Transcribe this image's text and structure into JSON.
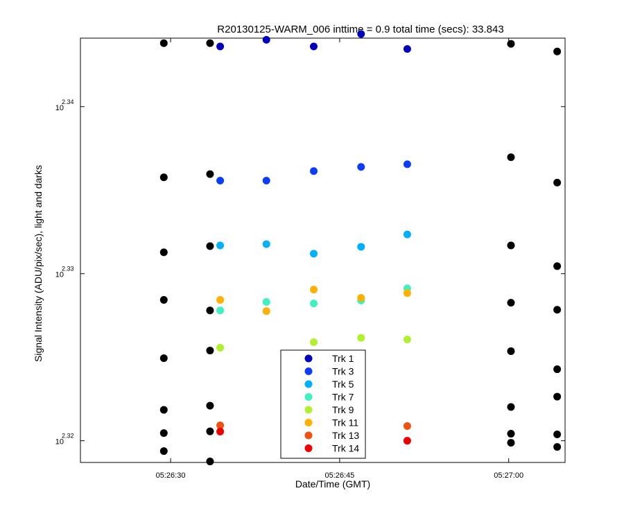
{
  "chart_data": {
    "type": "scatter",
    "title": "R20130125-WARM_006 inttime = 0.9 total time (secs): 33.843",
    "xlabel": "Date/Time (GMT)",
    "ylabel": "Signal Intensity (ADU/pix/sec), light and darks",
    "y_scale": "log",
    "xlim": [
      "05:26:22",
      "05:27:05"
    ],
    "ylim_log10": [
      2.3187,
      2.3441
    ],
    "x_ticks": [
      {
        "time": "05:26:30",
        "label": "05:26:30"
      },
      {
        "time": "05:26:45",
        "label": "05:26:45"
      },
      {
        "time": "05:27:00",
        "label": "05:27:00"
      }
    ],
    "y_ticks": [
      {
        "log10": 2.32,
        "base": "10",
        "exponent": "2.32"
      },
      {
        "log10": 2.33,
        "base": "10",
        "exponent": "2.33"
      },
      {
        "log10": 2.34,
        "base": "10",
        "exponent": "2.34"
      }
    ],
    "legend": {
      "position": "bottom-center"
    },
    "series": [
      {
        "name": "Trk 1",
        "color": "#0000bb",
        "points": [
          {
            "t": "05:26:34.4",
            "log10y": 2.3436
          },
          {
            "t": "05:26:38.5",
            "log10y": 2.344
          },
          {
            "t": "05:26:42.7",
            "log10y": 2.3436
          },
          {
            "t": "05:26:46.9",
            "log10y": 2.34435
          },
          {
            "t": "05:26:51.0",
            "log10y": 2.34345
          }
        ]
      },
      {
        "name": "Trk 3",
        "color": "#0a3df5",
        "points": [
          {
            "t": "05:26:34.4",
            "log10y": 2.33557
          },
          {
            "t": "05:26:38.5",
            "log10y": 2.33557
          },
          {
            "t": "05:26:42.7",
            "log10y": 2.33614
          },
          {
            "t": "05:26:46.9",
            "log10y": 2.33639
          },
          {
            "t": "05:26:51.0",
            "log10y": 2.33655
          }
        ]
      },
      {
        "name": "Trk 5",
        "color": "#00b0ff",
        "points": [
          {
            "t": "05:26:34.4",
            "log10y": 2.33169
          },
          {
            "t": "05:26:38.5",
            "log10y": 2.33177
          },
          {
            "t": "05:26:42.7",
            "log10y": 2.3312
          },
          {
            "t": "05:26:46.9",
            "log10y": 2.33161
          },
          {
            "t": "05:26:51.0",
            "log10y": 2.33235
          }
        ]
      },
      {
        "name": "Trk 7",
        "color": "#40f0c0",
        "points": [
          {
            "t": "05:26:34.4",
            "log10y": 2.3278
          },
          {
            "t": "05:26:38.5",
            "log10y": 2.32831
          },
          {
            "t": "05:26:42.7",
            "log10y": 2.32822
          },
          {
            "t": "05:26:46.9",
            "log10y": 2.32839
          },
          {
            "t": "05:26:51.0",
            "log10y": 2.32912
          }
        ]
      },
      {
        "name": "Trk 9",
        "color": "#b0f030",
        "points": [
          {
            "t": "05:26:34.4",
            "log10y": 2.32557
          },
          {
            "t": "05:26:42.7",
            "log10y": 2.3259
          },
          {
            "t": "05:26:46.9",
            "log10y": 2.32616
          },
          {
            "t": "05:26:51.0",
            "log10y": 2.32606
          }
        ]
      },
      {
        "name": "Trk 11",
        "color": "#ffb000",
        "points": [
          {
            "t": "05:26:34.4",
            "log10y": 2.32843
          },
          {
            "t": "05:26:38.5",
            "log10y": 2.32776
          },
          {
            "t": "05:26:42.7",
            "log10y": 2.32905
          },
          {
            "t": "05:26:46.9",
            "log10y": 2.32855
          },
          {
            "t": "05:26:51.0",
            "log10y": 2.32884
          }
        ]
      },
      {
        "name": "Trk 13",
        "color": "#f05010",
        "points": [
          {
            "t": "05:26:34.4",
            "log10y": 2.32092
          },
          {
            "t": "05:26:46.9",
            "log10y": 2.32096
          },
          {
            "t": "05:26:51.0",
            "log10y": 2.32088
          }
        ]
      },
      {
        "name": "Trk 14",
        "color": "#ee0000",
        "points": [
          {
            "t": "05:26:34.4",
            "log10y": 2.32055
          },
          {
            "t": "05:26:46.9",
            "log10y": 2.32004
          },
          {
            "t": "05:26:51.0",
            "log10y": 2.32
          }
        ]
      },
      {
        "color": "#000000",
        "points": [
          {
            "t": "05:26:29.4",
            "log10y": 2.3438
          },
          {
            "t": "05:26:29.4",
            "log10y": 2.33577
          },
          {
            "t": "05:26:29.4",
            "log10y": 2.33128
          },
          {
            "t": "05:26:29.4",
            "log10y": 2.32843
          },
          {
            "t": "05:26:29.4",
            "log10y": 2.32494
          },
          {
            "t": "05:26:29.4",
            "log10y": 2.32185
          },
          {
            "t": "05:26:29.4",
            "log10y": 2.32046
          },
          {
            "t": "05:26:29.4",
            "log10y": 2.31938
          },
          {
            "t": "05:26:33.5",
            "log10y": 2.3438
          },
          {
            "t": "05:26:33.5",
            "log10y": 2.33596
          },
          {
            "t": "05:26:33.5",
            "log10y": 2.33165
          },
          {
            "t": "05:26:33.5",
            "log10y": 2.3278
          },
          {
            "t": "05:26:33.5",
            "log10y": 2.3254
          },
          {
            "t": "05:26:33.5",
            "log10y": 2.3221
          },
          {
            "t": "05:26:33.5",
            "log10y": 2.32056
          },
          {
            "t": "05:26:33.5",
            "log10y": 2.31876
          },
          {
            "t": "05:27:00.2",
            "log10y": 2.34376
          },
          {
            "t": "05:27:00.2",
            "log10y": 2.33697
          },
          {
            "t": "05:27:00.2",
            "log10y": 2.33169
          },
          {
            "t": "05:27:00.2",
            "log10y": 2.32826
          },
          {
            "t": "05:27:00.2",
            "log10y": 2.32536
          },
          {
            "t": "05:27:00.2",
            "log10y": 2.32202
          },
          {
            "t": "05:27:00.2",
            "log10y": 2.32042
          },
          {
            "t": "05:27:00.2",
            "log10y": 2.31988
          },
          {
            "t": "05:27:04.3",
            "log10y": 2.3433
          },
          {
            "t": "05:27:04.3",
            "log10y": 2.33545
          },
          {
            "t": "05:27:04.3",
            "log10y": 2.33045
          },
          {
            "t": "05:27:04.3",
            "log10y": 2.32784
          },
          {
            "t": "05:27:04.3",
            "log10y": 2.32428
          },
          {
            "t": "05:27:04.3",
            "log10y": 2.32264
          },
          {
            "t": "05:27:04.3",
            "log10y": 2.32038
          },
          {
            "t": "05:27:04.3",
            "log10y": 2.31963
          }
        ]
      }
    ]
  }
}
